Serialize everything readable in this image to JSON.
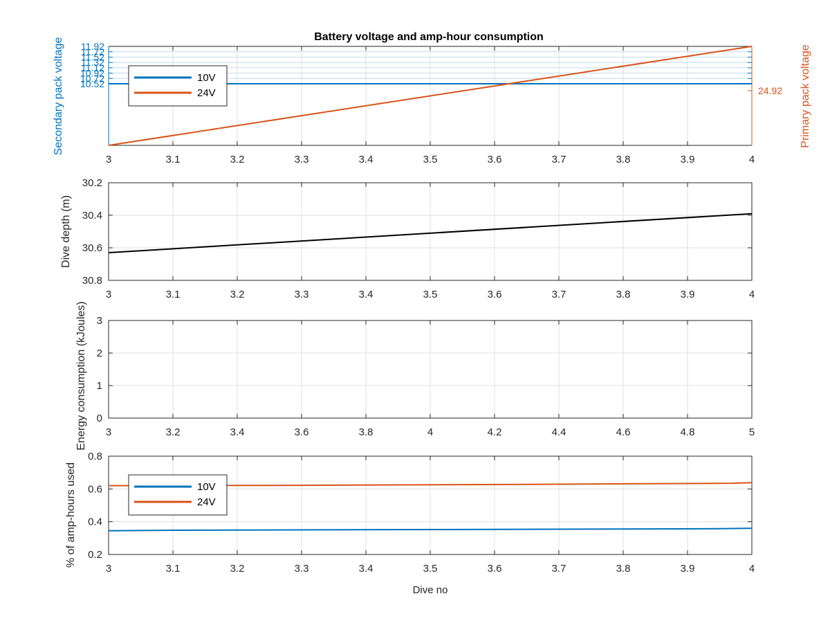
{
  "title": "Battery voltage and amp-hour consumption",
  "colors": {
    "blue": "#0072BD",
    "orange": "#D95319",
    "black": "#000000",
    "grid": "#dfdfdf",
    "axis": "#262626"
  },
  "chart_data": [
    {
      "type": "line",
      "title": "Battery voltage and amp-hour consumption",
      "xlim": [
        3,
        4
      ],
      "xticks": [
        "3",
        "3.1",
        "3.2",
        "3.3",
        "3.4",
        "3.5",
        "3.6",
        "3.7",
        "3.8",
        "3.9",
        "4"
      ],
      "ylabel_left": "Secondary pack voltage",
      "ylabel_right": "Primary pack voltage",
      "yticks_left": [
        "10.52",
        "10.72",
        "10.92",
        "11.12",
        "11.32",
        "11.52",
        "11.72",
        "11.92"
      ],
      "yticks_right": [
        "24.92"
      ],
      "grid": true,
      "legend": {
        "position": "top-left",
        "entries": [
          "10V",
          "24V"
        ]
      },
      "series": [
        {
          "name": "10V",
          "axis": "left",
          "x": [
            3,
            4
          ],
          "y": [
            10.52,
            10.52
          ]
        },
        {
          "name": "24V",
          "axis": "right",
          "x": [
            3,
            4
          ],
          "y": [
            24.0,
            25.0
          ]
        }
      ]
    },
    {
      "type": "line",
      "xlim": [
        3,
        4
      ],
      "ylim": [
        30.2,
        30.8
      ],
      "y_reversed": true,
      "xticks": [
        "3",
        "3.1",
        "3.2",
        "3.3",
        "3.4",
        "3.5",
        "3.6",
        "3.7",
        "3.8",
        "3.9",
        "4"
      ],
      "yticks": [
        "30.2",
        "30.4",
        "30.6",
        "30.8"
      ],
      "ylabel": "Dive depth (m)",
      "grid": true,
      "series": [
        {
          "x": [
            3,
            4
          ],
          "y": [
            30.63,
            30.39
          ]
        }
      ]
    },
    {
      "type": "line",
      "xlim": [
        3,
        5
      ],
      "ylim": [
        0,
        3
      ],
      "xticks": [
        "3",
        "3.2",
        "3.4",
        "3.6",
        "3.8",
        "4",
        "4.2",
        "4.4",
        "4.6",
        "4.8",
        "5"
      ],
      "yticks": [
        "0",
        "1",
        "2",
        "3"
      ],
      "ylabel": "Energy consumption (kJoules)",
      "grid": true,
      "series": []
    },
    {
      "type": "line",
      "xlim": [
        3,
        4
      ],
      "ylim": [
        0.2,
        0.8
      ],
      "xticks": [
        "3",
        "3.1",
        "3.2",
        "3.3",
        "3.4",
        "3.5",
        "3.6",
        "3.7",
        "3.8",
        "3.9",
        "4"
      ],
      "yticks": [
        "0.2",
        "0.4",
        "0.6",
        "0.8"
      ],
      "xlabel": "Dive no",
      "ylabel": "% of amp-hours used",
      "grid": true,
      "legend": {
        "position": "top-left",
        "entries": [
          "10V",
          "24V"
        ]
      },
      "series": [
        {
          "name": "10V",
          "x": [
            3,
            3.1,
            3.5,
            3.95,
            4
          ],
          "y": [
            0.345,
            0.348,
            0.352,
            0.357,
            0.36
          ]
        },
        {
          "name": "24V",
          "x": [
            3,
            3.3,
            3.62,
            3.97,
            4
          ],
          "y": [
            0.62,
            0.622,
            0.627,
            0.635,
            0.638
          ]
        }
      ]
    }
  ]
}
